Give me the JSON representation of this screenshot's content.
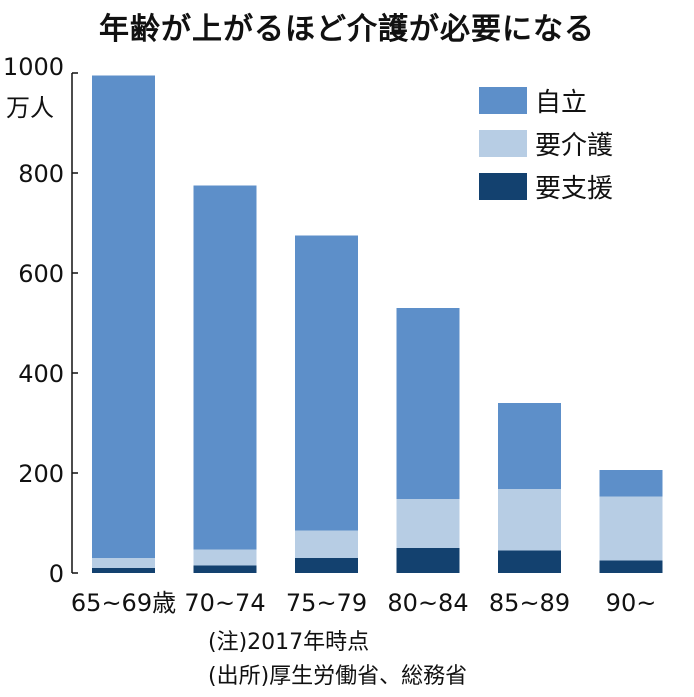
{
  "chart_data": {
    "type": "bar",
    "stacked": true,
    "title": "年齢が上がるほど介護が必要になる",
    "unit_label": "万人",
    "ylim": [
      0,
      1000
    ],
    "yticks": [
      0,
      200,
      400,
      600,
      800,
      1000
    ],
    "categories": [
      "65~69歳",
      "70~74",
      "75~79",
      "80~84",
      "85~89",
      "90~"
    ],
    "series": [
      {
        "name": "要支援",
        "color": "#13416f",
        "values": [
          10,
          15,
          30,
          50,
          45,
          25
        ]
      },
      {
        "name": "要介護",
        "color": "#b7cde4",
        "values": [
          20,
          32,
          55,
          98,
          123,
          128
        ]
      },
      {
        "name": "自立",
        "color": "#5d8fc9",
        "values": [
          965,
          728,
          590,
          382,
          172,
          53
        ]
      }
    ],
    "legend_order": [
      "自立",
      "要介護",
      "要支援"
    ],
    "legend_position": "top-right",
    "grid": false
  },
  "notes": {
    "note": "(注)2017年時点",
    "source": "(出所)厚生労働省、総務省"
  }
}
